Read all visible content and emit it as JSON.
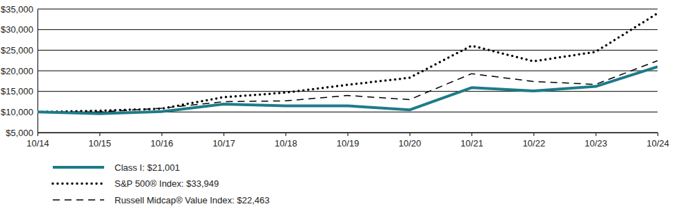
{
  "chart_data": {
    "type": "line",
    "x": [
      "10/14",
      "10/15",
      "10/16",
      "10/17",
      "10/18",
      "10/19",
      "10/20",
      "10/21",
      "10/22",
      "10/23",
      "10/24"
    ],
    "series": [
      {
        "name": "Class I: $21,001",
        "color": "#1d7b88",
        "line_style": "solid",
        "values": [
          10000,
          9600,
          10100,
          11900,
          11500,
          11500,
          10500,
          15900,
          15100,
          16200,
          21001
        ]
      },
      {
        "name": "S&P 500® Index: $33,949",
        "color": "#000000",
        "line_style": "dotted",
        "values": [
          10000,
          10300,
          10800,
          13600,
          14700,
          16600,
          18300,
          26100,
          22300,
          24600,
          33949
        ]
      },
      {
        "name": "Russell Midcap® Value Index: $22,463",
        "color": "#000000",
        "line_style": "dashed",
        "values": [
          10000,
          10000,
          10900,
          12500,
          12700,
          14000,
          13000,
          19300,
          17400,
          16700,
          22463
        ]
      }
    ],
    "ylim": [
      5000,
      35000
    ],
    "yticks": [
      {
        "value": 5000,
        "label": "$5,000"
      },
      {
        "value": 10000,
        "label": "$10,000"
      },
      {
        "value": 15000,
        "label": "$15,000"
      },
      {
        "value": 20000,
        "label": "$20,000"
      },
      {
        "value": 25000,
        "label": "$25,000"
      },
      {
        "value": 30000,
        "label": "$30,000"
      },
      {
        "value": 35000,
        "label": "$35,000"
      }
    ],
    "grid": true,
    "legend": "bottom"
  }
}
